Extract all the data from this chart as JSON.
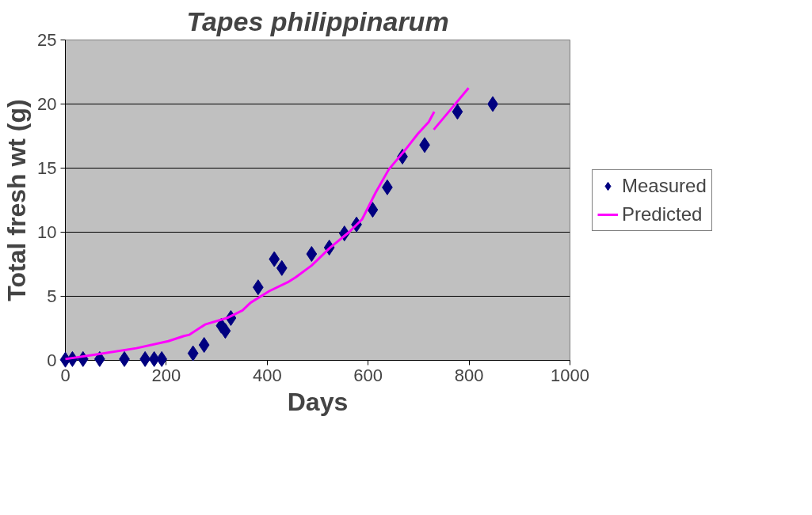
{
  "chart_data": {
    "type": "scatter",
    "title": "Tapes philippinarum",
    "xlabel": "Days",
    "ylabel": "Total fresh wt (g)",
    "xlim": [
      0,
      1000
    ],
    "xticks": [
      0,
      200,
      400,
      600,
      800,
      1000
    ],
    "ylim": [
      0,
      25
    ],
    "yticks": [
      0,
      5,
      10,
      15,
      20,
      25
    ],
    "grid": "y",
    "legend": "right",
    "series": [
      {
        "name": "Measured",
        "marker": "diamond",
        "color": "#000080",
        "x": [
          0,
          14,
          35,
          68,
          117,
          158,
          176,
          191,
          253,
          275,
          309,
          317,
          328,
          382,
          414,
          429,
          488,
          523,
          553,
          577,
          609,
          638,
          668,
          712,
          777,
          847
        ],
        "values": [
          0.05,
          0.1,
          0.1,
          0.1,
          0.1,
          0.1,
          0.1,
          0.1,
          0.55,
          1.2,
          2.7,
          2.3,
          3.3,
          5.7,
          7.9,
          7.2,
          8.3,
          8.8,
          9.9,
          10.6,
          11.75,
          13.5,
          15.9,
          16.8,
          19.4,
          20.0
        ]
      },
      {
        "name": "Predicted",
        "type": "line",
        "marker": "none",
        "color": "#ff00ff",
        "x": [
          0,
          67,
          141,
          204,
          235,
          246,
          277,
          320,
          351,
          367,
          404,
          441,
          457,
          488,
          525,
          562,
          588,
          615,
          641,
          673,
          699,
          720,
          731,
          730.5,
          730,
          762,
          799
        ],
        "values": [
          0.1,
          0.5,
          0.95,
          1.5,
          1.9,
          2.0,
          2.8,
          3.3,
          3.9,
          4.5,
          5.4,
          6.1,
          6.5,
          7.4,
          8.8,
          10.0,
          11.0,
          13.1,
          14.9,
          16.4,
          17.7,
          18.6,
          19.4,
          null,
          18.0,
          19.5,
          21.25
        ]
      }
    ]
  }
}
